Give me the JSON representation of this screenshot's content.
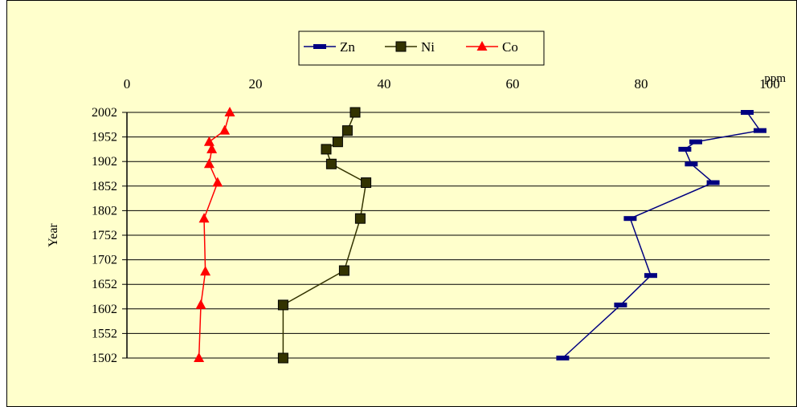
{
  "chart_data": {
    "type": "line",
    "orientation": "depth-profile",
    "x_axis_position": "top",
    "xunit": "ppm",
    "ylabel": "Year",
    "xlim": [
      0,
      100
    ],
    "xticks": [
      0,
      20,
      40,
      60,
      80,
      100
    ],
    "ylim": [
      1502,
      2002
    ],
    "yticks": [
      2002,
      1952,
      1902,
      1852,
      1802,
      1752,
      1702,
      1652,
      1602,
      1552,
      1502
    ],
    "grid": "horizontal",
    "legend_position": "top-center",
    "series": [
      {
        "name": "Zn",
        "color": "#000080",
        "marker": "dash",
        "points": [
          {
            "x": 96.5,
            "y": 2002
          },
          {
            "x": 98.5,
            "y": 1965
          },
          {
            "x": 88.5,
            "y": 1942
          },
          {
            "x": 86.8,
            "y": 1927
          },
          {
            "x": 87.8,
            "y": 1897
          },
          {
            "x": 91.2,
            "y": 1859
          },
          {
            "x": 78.3,
            "y": 1786
          },
          {
            "x": 81.5,
            "y": 1670
          },
          {
            "x": 76.8,
            "y": 1610
          },
          {
            "x": 67.8,
            "y": 1502
          }
        ]
      },
      {
        "name": "Ni",
        "color": "#333300",
        "marker": "square",
        "points": [
          {
            "x": 35.5,
            "y": 2002
          },
          {
            "x": 34.3,
            "y": 1965
          },
          {
            "x": 32.8,
            "y": 1942
          },
          {
            "x": 31.0,
            "y": 1927
          },
          {
            "x": 31.8,
            "y": 1897
          },
          {
            "x": 37.2,
            "y": 1859
          },
          {
            "x": 36.3,
            "y": 1786
          },
          {
            "x": 33.8,
            "y": 1680
          },
          {
            "x": 24.3,
            "y": 1610
          },
          {
            "x": 24.3,
            "y": 1502
          }
        ]
      },
      {
        "name": "Co",
        "color": "#ff0000",
        "marker": "triangle",
        "points": [
          {
            "x": 16.0,
            "y": 2002
          },
          {
            "x": 15.2,
            "y": 1965
          },
          {
            "x": 12.8,
            "y": 1942
          },
          {
            "x": 13.2,
            "y": 1927
          },
          {
            "x": 12.8,
            "y": 1897
          },
          {
            "x": 14.1,
            "y": 1859
          },
          {
            "x": 12.0,
            "y": 1786
          },
          {
            "x": 12.2,
            "y": 1678
          },
          {
            "x": 11.5,
            "y": 1610
          },
          {
            "x": 11.2,
            "y": 1502
          }
        ]
      }
    ]
  }
}
